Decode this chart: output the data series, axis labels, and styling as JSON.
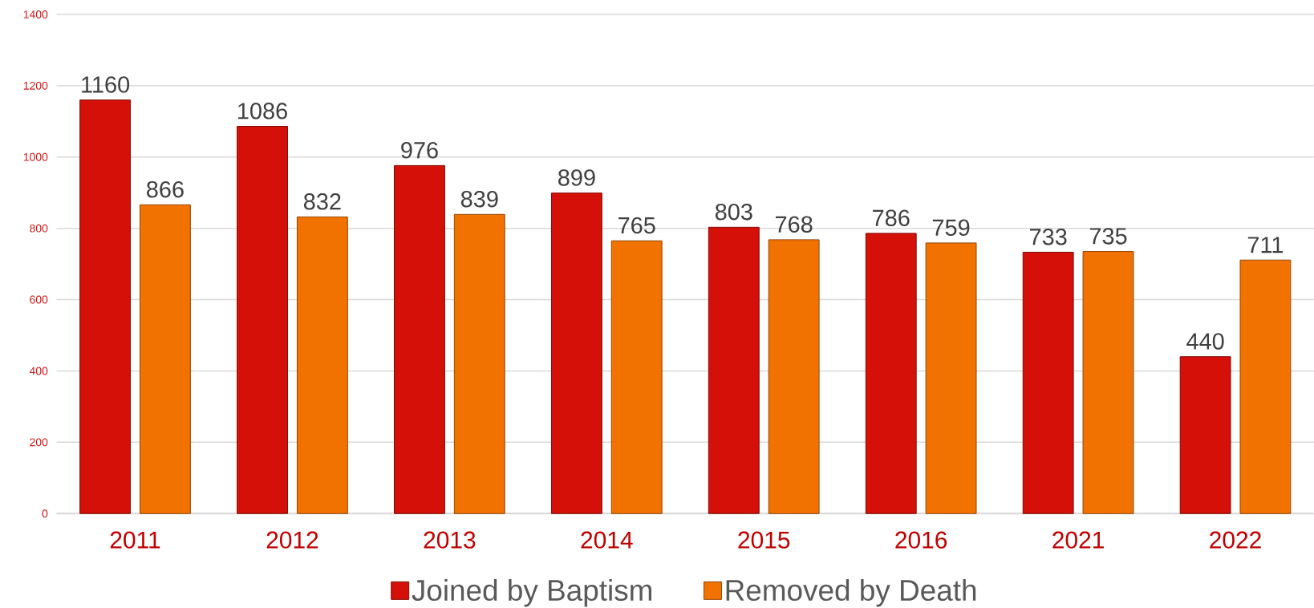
{
  "chart_data": {
    "type": "bar",
    "categories": [
      "2011",
      "2012",
      "2013",
      "2014",
      "2015",
      "2016",
      "2021",
      "2022"
    ],
    "series": [
      {
        "name": "Joined by Baptism",
        "color": "#d41008",
        "values": [
          1160,
          1086,
          976,
          899,
          803,
          786,
          733,
          440
        ]
      },
      {
        "name": "Removed by Death",
        "color": "#f27200",
        "values": [
          866,
          832,
          839,
          765,
          768,
          759,
          735,
          711
        ]
      }
    ],
    "ylim": [
      0,
      1400
    ],
    "yticks": [
      0,
      200,
      400,
      600,
      800,
      1000,
      1200,
      1400
    ],
    "grid": "y",
    "legend": "bottom",
    "data_labels": true
  }
}
